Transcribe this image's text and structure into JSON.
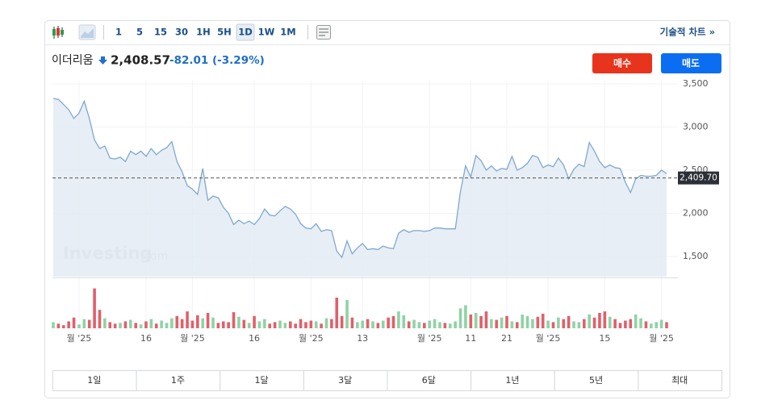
{
  "toolbar": {
    "intervals": [
      "1",
      "5",
      "15",
      "30",
      "1H",
      "5H",
      "1D",
      "1W",
      "1M"
    ],
    "active_index": 6,
    "technical_link": "기술적 차트 »"
  },
  "header": {
    "name": "이더리움",
    "price": "2,408.57",
    "change": "-82.01 (-3.29%)"
  },
  "buttons": {
    "buy": "매수",
    "sell": "매도"
  },
  "watermark": {
    "brand": "Investing",
    "suffix": ".com"
  },
  "ranges": [
    "1일",
    "1주",
    "1달",
    "3달",
    "6달",
    "1년",
    "5년",
    "최대"
  ],
  "chart_data": {
    "type": "line",
    "series": [
      {
        "color": "#7fa8d0",
        "fill": "#e3ebf3",
        "values": [
          3330,
          3320,
          3260,
          3200,
          3100,
          3160,
          3300,
          3100,
          2850,
          2750,
          2780,
          2640,
          2630,
          2650,
          2600,
          2720,
          2680,
          2720,
          2660,
          2750,
          2680,
          2730,
          2760,
          2830,
          2600,
          2480,
          2320,
          2280,
          2220,
          2520,
          2150,
          2200,
          2180,
          2070,
          2000,
          1870,
          1920,
          1880,
          1910,
          1870,
          1940,
          2050,
          1980,
          1970,
          2030,
          2080,
          2050,
          1990,
          1880,
          1830,
          1820,
          1880,
          1790,
          1810,
          1800,
          1560,
          1490,
          1680,
          1530,
          1600,
          1650,
          1580,
          1590,
          1580,
          1620,
          1600,
          1590,
          1770,
          1810,
          1780,
          1800,
          1800,
          1790,
          1800,
          1830,
          1830,
          1820,
          1820,
          1820,
          2250,
          2550,
          2420,
          2670,
          2610,
          2500,
          2550,
          2490,
          2520,
          2510,
          2660,
          2500,
          2530,
          2580,
          2670,
          2650,
          2530,
          2560,
          2540,
          2640,
          2560,
          2400,
          2510,
          2570,
          2540,
          2820,
          2720,
          2600,
          2530,
          2560,
          2530,
          2520,
          2360,
          2240,
          2400,
          2440,
          2430,
          2430,
          2440,
          2500,
          2460
        ]
      }
    ],
    "volume": {
      "up_color": "#8fd3a5",
      "down_color": "#e0606a",
      "ylim": [
        0,
        60
      ],
      "values": [
        8,
        6,
        4,
        9,
        14,
        5,
        12,
        11,
        52,
        24,
        13,
        8,
        6,
        7,
        9,
        11,
        7,
        5,
        9,
        12,
        6,
        10,
        7,
        13,
        16,
        12,
        22,
        10,
        17,
        13,
        20,
        14,
        7,
        9,
        8,
        21,
        15,
        11,
        7,
        16,
        9,
        12,
        6,
        8,
        10,
        7,
        9,
        6,
        12,
        8,
        10,
        9,
        6,
        13,
        12,
        40,
        16,
        37,
        14,
        8,
        10,
        12,
        9,
        7,
        10,
        14,
        16,
        22,
        17,
        9,
        11,
        8,
        7,
        10,
        12,
        8,
        7,
        6,
        9,
        26,
        30,
        18,
        20,
        16,
        22,
        12,
        11,
        14,
        16,
        9,
        8,
        18,
        16,
        12,
        15,
        19,
        10,
        8,
        14,
        12,
        16,
        9,
        8,
        12,
        18,
        14,
        20,
        22,
        15,
        12,
        7,
        10,
        12,
        18,
        13,
        9,
        6,
        8,
        11,
        8
      ]
    },
    "xlim": [
      0,
      119
    ],
    "xticks": [
      {
        "value": 5,
        "label": "월 '25"
      },
      {
        "value": 18,
        "label": "16"
      },
      {
        "value": 27,
        "label": "월 '25"
      },
      {
        "value": 39,
        "label": "16"
      },
      {
        "value": 50,
        "label": "월 '25"
      },
      {
        "value": 60,
        "label": "13"
      },
      {
        "value": 73,
        "label": "월 '25"
      },
      {
        "value": 81,
        "label": "11"
      },
      {
        "value": 88,
        "label": "21"
      },
      {
        "value": 96,
        "label": "월 '25"
      },
      {
        "value": 107,
        "label": "15"
      },
      {
        "value": 118,
        "label": "월 '25"
      }
    ],
    "ylim": [
      1266,
      3537
    ],
    "yticks": [
      {
        "value": 1500,
        "label": "1,500"
      },
      {
        "value": 2000,
        "label": "2,000"
      },
      {
        "value": 2500,
        "label": "2,500"
      },
      {
        "value": 3000,
        "label": "3,000"
      },
      {
        "value": 3500,
        "label": "3,500"
      }
    ],
    "last_price": {
      "value": 2409.7,
      "label": "2,409.70"
    },
    "grid": true
  }
}
